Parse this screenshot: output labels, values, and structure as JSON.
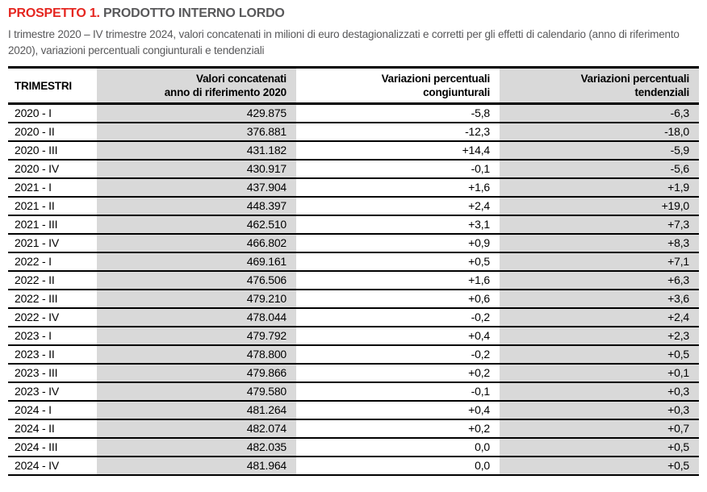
{
  "title": {
    "label": "PROSPETTO 1.",
    "text": "PRODOTTO INTERNO LORDO"
  },
  "subtitle": "I trimestre 2020 – IV trimestre 2024, valori concatenati in milioni di euro destagionalizzati e corretti per gli effetti di calendario (anno di riferimento 2020), variazioni percentuali congiunturali e tendenziali",
  "colors": {
    "accent_red": "#e52620",
    "title_gray": "#58585a",
    "shaded_column": "#d9d9d9",
    "border": "#000000"
  },
  "table": {
    "headers": [
      {
        "line1": "TRIMESTRI",
        "line2": ""
      },
      {
        "line1": "Valori concatenati",
        "line2": "anno di riferimento 2020"
      },
      {
        "line1": "Variazioni percentuali",
        "line2": "congiunturali"
      },
      {
        "line1": "Variazioni percentuali",
        "line2": "tendenziali"
      }
    ],
    "rows": [
      [
        "2020 - I",
        "429.875",
        "-5,8",
        "-6,3"
      ],
      [
        "2020 - II",
        "376.881",
        "-12,3",
        "-18,0"
      ],
      [
        "2020 - III",
        "431.182",
        "+14,4",
        "-5,9"
      ],
      [
        "2020 - IV",
        "430.917",
        "-0,1",
        "-5,6"
      ],
      [
        "2021 - I",
        "437.904",
        "+1,6",
        "+1,9"
      ],
      [
        "2021 - II",
        "448.397",
        "+2,4",
        "+19,0"
      ],
      [
        "2021 - III",
        "462.510",
        "+3,1",
        "+7,3"
      ],
      [
        "2021 - IV",
        "466.802",
        "+0,9",
        "+8,3"
      ],
      [
        "2022 - I",
        "469.161",
        "+0,5",
        "+7,1"
      ],
      [
        "2022 - II",
        "476.506",
        "+1,6",
        "+6,3"
      ],
      [
        "2022 - III",
        "479.210",
        "+0,6",
        "+3,6"
      ],
      [
        "2022 - IV",
        "478.044",
        "-0,2",
        "+2,4"
      ],
      [
        "2023 - I",
        "479.792",
        "+0,4",
        "+2,3"
      ],
      [
        "2023 - II",
        "478.800",
        "-0,2",
        "+0,5"
      ],
      [
        "2023 - III",
        "479.866",
        "+0,2",
        "+0,1"
      ],
      [
        "2023 - IV",
        "479.580",
        "-0,1",
        "+0,3"
      ],
      [
        "2024 - I",
        "481.264",
        "+0,4",
        "+0,3"
      ],
      [
        "2024 - II",
        "482.074",
        "+0,2",
        "+0,7"
      ],
      [
        "2024 - III",
        "482.035",
        "0,0",
        "+0,5"
      ],
      [
        "2024 - IV",
        "481.964",
        "0,0",
        "+0,5"
      ]
    ]
  }
}
